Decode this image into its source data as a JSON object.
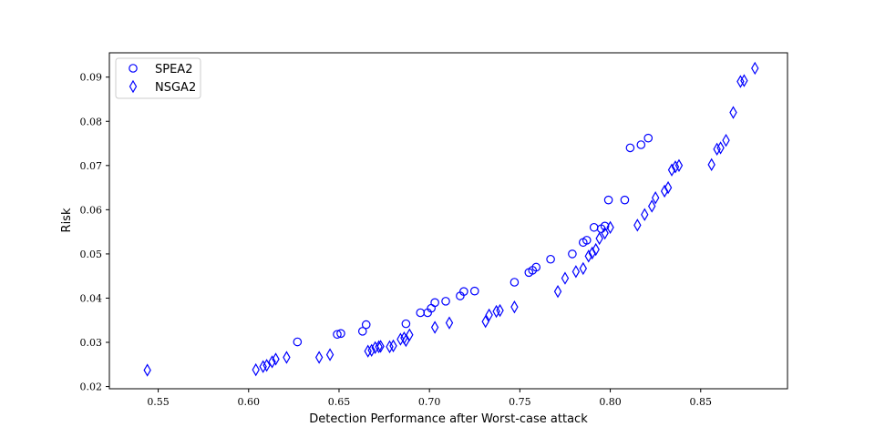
{
  "chart_data": {
    "type": "scatter",
    "title": "",
    "xlabel": "Detection Performance after Worst-case attack",
    "ylabel": "Risk",
    "xlim": [
      0.523,
      0.898
    ],
    "ylim": [
      0.0195,
      0.0955
    ],
    "xticks": [
      0.55,
      0.6,
      0.65,
      0.7,
      0.75,
      0.8,
      0.85
    ],
    "xtick_labels": [
      "0.55",
      "0.60",
      "0.65",
      "0.70",
      "0.75",
      "0.80",
      "0.85"
    ],
    "yticks": [
      0.02,
      0.03,
      0.04,
      0.05,
      0.06,
      0.07,
      0.08,
      0.09
    ],
    "ytick_labels": [
      "0.02",
      "0.03",
      "0.04",
      "0.05",
      "0.06",
      "0.07",
      "0.08",
      "0.09"
    ],
    "grid": false,
    "legend_position": "top-left",
    "series": [
      {
        "name": "SPEA2",
        "marker": "circle",
        "color": "#0000ff",
        "points": [
          [
            0.627,
            0.0301
          ],
          [
            0.649,
            0.0318
          ],
          [
            0.651,
            0.032
          ],
          [
            0.663,
            0.0325
          ],
          [
            0.665,
            0.034
          ],
          [
            0.687,
            0.0342
          ],
          [
            0.695,
            0.0367
          ],
          [
            0.699,
            0.0367
          ],
          [
            0.701,
            0.0377
          ],
          [
            0.703,
            0.039
          ],
          [
            0.709,
            0.0393
          ],
          [
            0.717,
            0.0405
          ],
          [
            0.719,
            0.0415
          ],
          [
            0.725,
            0.0416
          ],
          [
            0.747,
            0.0436
          ],
          [
            0.755,
            0.0458
          ],
          [
            0.757,
            0.0463
          ],
          [
            0.759,
            0.047
          ],
          [
            0.767,
            0.0488
          ],
          [
            0.779,
            0.05
          ],
          [
            0.785,
            0.0526
          ],
          [
            0.787,
            0.0531
          ],
          [
            0.791,
            0.056
          ],
          [
            0.795,
            0.0557
          ],
          [
            0.797,
            0.0563
          ],
          [
            0.799,
            0.0622
          ],
          [
            0.808,
            0.0622
          ],
          [
            0.811,
            0.074
          ],
          [
            0.817,
            0.0747
          ],
          [
            0.821,
            0.0762
          ]
        ]
      },
      {
        "name": "NSGA2",
        "marker": "diamond",
        "color": "#0000ff",
        "points": [
          [
            0.544,
            0.0237
          ],
          [
            0.604,
            0.0238
          ],
          [
            0.608,
            0.0245
          ],
          [
            0.61,
            0.0248
          ],
          [
            0.613,
            0.0256
          ],
          [
            0.615,
            0.0262
          ],
          [
            0.621,
            0.0266
          ],
          [
            0.639,
            0.0266
          ],
          [
            0.645,
            0.0272
          ],
          [
            0.666,
            0.028
          ],
          [
            0.668,
            0.0282
          ],
          [
            0.67,
            0.0288
          ],
          [
            0.672,
            0.029
          ],
          [
            0.673,
            0.0291
          ],
          [
            0.678,
            0.029
          ],
          [
            0.68,
            0.0292
          ],
          [
            0.684,
            0.0307
          ],
          [
            0.686,
            0.031
          ],
          [
            0.687,
            0.0304
          ],
          [
            0.689,
            0.0317
          ],
          [
            0.703,
            0.0334
          ],
          [
            0.711,
            0.0344
          ],
          [
            0.731,
            0.0347
          ],
          [
            0.733,
            0.0362
          ],
          [
            0.737,
            0.037
          ],
          [
            0.739,
            0.0372
          ],
          [
            0.747,
            0.038
          ],
          [
            0.771,
            0.0415
          ],
          [
            0.775,
            0.0445
          ],
          [
            0.781,
            0.046
          ],
          [
            0.785,
            0.0467
          ],
          [
            0.788,
            0.0495
          ],
          [
            0.79,
            0.0502
          ],
          [
            0.792,
            0.051
          ],
          [
            0.794,
            0.0535
          ],
          [
            0.797,
            0.0547
          ],
          [
            0.8,
            0.056
          ],
          [
            0.815,
            0.0565
          ],
          [
            0.819,
            0.0589
          ],
          [
            0.823,
            0.0608
          ],
          [
            0.825,
            0.0627
          ],
          [
            0.83,
            0.0642
          ],
          [
            0.832,
            0.065
          ],
          [
            0.834,
            0.069
          ],
          [
            0.836,
            0.0697
          ],
          [
            0.838,
            0.07
          ],
          [
            0.856,
            0.0702
          ],
          [
            0.859,
            0.0737
          ],
          [
            0.861,
            0.074
          ],
          [
            0.864,
            0.0757
          ],
          [
            0.868,
            0.082
          ],
          [
            0.872,
            0.089
          ],
          [
            0.874,
            0.0892
          ],
          [
            0.88,
            0.092
          ]
        ]
      }
    ]
  }
}
